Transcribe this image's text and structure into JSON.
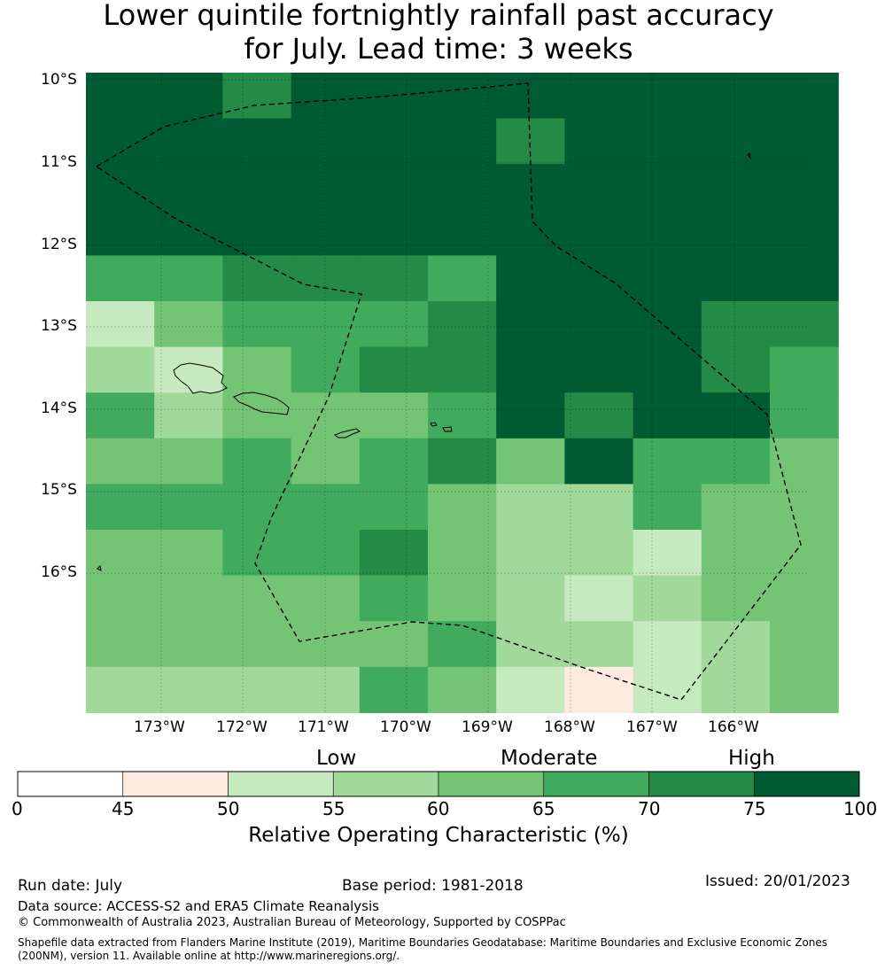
{
  "header": {
    "title_line1": "Lower quintile fortnightly rainfall past accuracy",
    "title_line2": "for July. Lead time: 3 weeks"
  },
  "map": {
    "lat_labels": [
      "10°S",
      "11°S",
      "12°S",
      "13°S",
      "14°S",
      "15°S",
      "16°S"
    ],
    "lon_labels": [
      "173°W",
      "172°W",
      "171°W",
      "170°W",
      "169°W",
      "168°W",
      "167°W",
      "166°W"
    ],
    "grid_values": [
      [
        80,
        80,
        72,
        80,
        80,
        80,
        80,
        80,
        80,
        80,
        80
      ],
      [
        80,
        80,
        80,
        80,
        80,
        80,
        72,
        80,
        80,
        80,
        80
      ],
      [
        80,
        80,
        80,
        80,
        80,
        80,
        80,
        80,
        80,
        80,
        80
      ],
      [
        80,
        80,
        80,
        80,
        80,
        80,
        80,
        80,
        80,
        80,
        80
      ],
      [
        67,
        67,
        72,
        72,
        72,
        67,
        80,
        80,
        80,
        80,
        80
      ],
      [
        52,
        62,
        67,
        67,
        67,
        72,
        80,
        80,
        80,
        72,
        72
      ],
      [
        57,
        52,
        62,
        67,
        72,
        72,
        80,
        80,
        80,
        72,
        67
      ],
      [
        67,
        57,
        62,
        62,
        62,
        67,
        80,
        72,
        80,
        80,
        67
      ],
      [
        62,
        62,
        67,
        62,
        67,
        72,
        62,
        80,
        67,
        67,
        62
      ],
      [
        67,
        67,
        67,
        67,
        67,
        62,
        57,
        57,
        67,
        62,
        62
      ],
      [
        62,
        62,
        67,
        67,
        72,
        62,
        57,
        57,
        52,
        62,
        62
      ],
      [
        62,
        62,
        62,
        62,
        67,
        62,
        57,
        52,
        57,
        62,
        62
      ],
      [
        62,
        62,
        62,
        62,
        62,
        67,
        57,
        57,
        52,
        57,
        62
      ],
      [
        57,
        57,
        57,
        57,
        67,
        62,
        52,
        47,
        52,
        57,
        62
      ]
    ]
  },
  "legend": {
    "categories": [
      "Low",
      "Moderate",
      "High"
    ],
    "ticks": [
      "0",
      "45",
      "50",
      "55",
      "60",
      "65",
      "70",
      "75",
      "100"
    ],
    "bins": [
      {
        "from": 0,
        "to": 45,
        "color": "#ffffff"
      },
      {
        "from": 45,
        "to": 50,
        "color": "#fdebe2"
      },
      {
        "from": 50,
        "to": 55,
        "color": "#c7e9c0"
      },
      {
        "from": 55,
        "to": 60,
        "color": "#a1d99b"
      },
      {
        "from": 60,
        "to": 65,
        "color": "#74c476"
      },
      {
        "from": 65,
        "to": 70,
        "color": "#41ab5d"
      },
      {
        "from": 70,
        "to": 75,
        "color": "#238b45"
      },
      {
        "from": 75,
        "to": 100,
        "color": "#005a32"
      }
    ],
    "title": "Relative Operating Characteristic (%)"
  },
  "footer": {
    "run_date": "Run date: July",
    "base_period": "Base period: 1981-2018",
    "issued": "Issued: 20/01/2023",
    "data_source": "Data source: ACCESS-S2 and ERA5 Climate Reanalysis",
    "copyright": "© Commonwealth of Australia 2023, Australian Bureau of Meteorology, Supported by COSPPac",
    "shapefile": "Shapefile data extracted from Flanders Marine Institute (2019), Maritime Boundaries Geodatabase: Maritime Boundaries and Exclusive Economic Zones (200NM), version 11. Available online at http://www.marineregions.org/."
  }
}
